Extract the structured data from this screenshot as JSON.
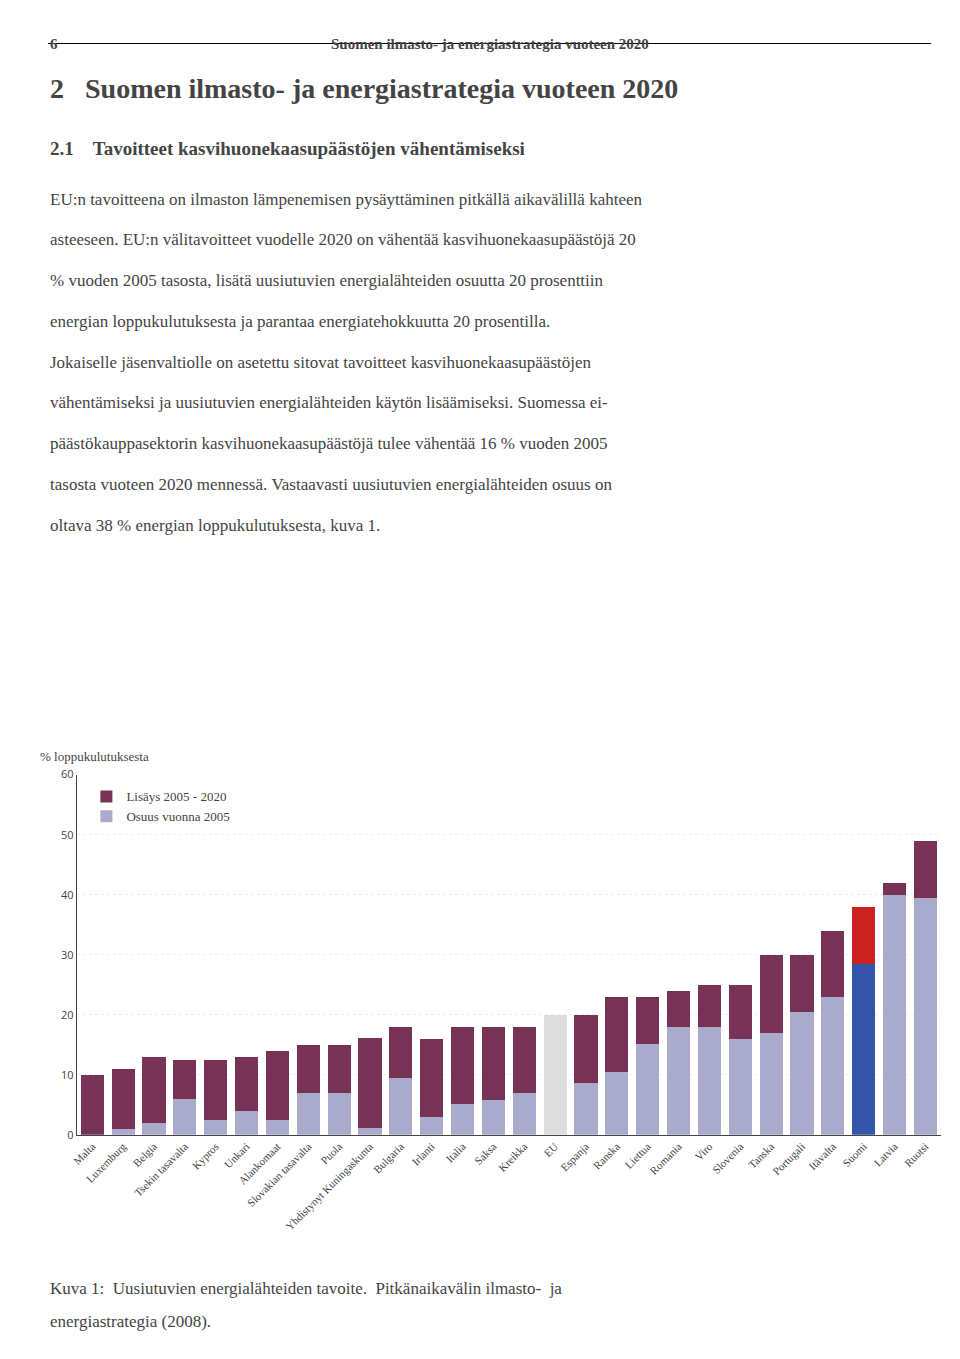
{
  "chart_data": {
    "type": "bar",
    "stacked": true,
    "annotations": [
      "6",
      "Suomen ilmasto- ja energiastrategia vuoteen 2020",
      "2   Suomen ilmasto- ja energiastrategia vuoteen 2020",
      "2.1    Tavoitteet kasvihuonekaasupäästöjen vähentämiseksi",
      "EU:n tavoitteena on ilmaston lämpenemisen pysäyttäminen pitkällä aikavälillä kahteen",
      "asteeseen. EU:n välitavoitteet vuodelle 2020 on vähentää kasvihuonekaasupäästöjä 20",
      "% vuoden 2005 tasosta, lisätä uusiutuvien energialähteiden osuutta 20 prosenttiin",
      "energian loppukulutuksesta ja parantaa energiatehokkuutta 20 prosentilla.",
      "Jokaiselle jäsenvaltiolle on asetettu sitovat tavoitteet kasvihuonekaasupäästöjen",
      "vähentämiseksi ja uusiutuvien energialähteiden käytön lisäämiseksi. Suomessa ei-",
      "päästökauppasektorin kasvihuonekaasupäästöjä tulee vähentää 16 % vuoden 2005",
      "tasosta vuoteen 2020 mennessä. Vastaavasti uusiutuvien energialähteiden osuus on",
      "oltava 38 % energian loppukulutuksesta, kuva 1.",
      "Kuva 1:  Uusiutuvien energialähteiden tavoite.  Pitkänaikavälin ilmasto-  ja",
      "energiastrategia (2008)."
    ],
    "ylabel": "% loppukulutuksesta",
    "categories": [
      "Malta",
      "Luxemburg",
      "Belgia",
      "Tsekin tasavalta",
      "Kypros",
      "Unkari",
      "Alankomaat",
      "Slovakian tasavalta",
      "Puola",
      "Yhdistynyt Kuningaskunta",
      "Bulgaria",
      "Irlanti",
      "Italia",
      "Saksa",
      "Kreikka",
      "EU",
      "Espanja",
      "Ranska",
      "Liettua",
      "Romania",
      "Viro",
      "Slovenia",
      "Tanska",
      "Portugali",
      "Itävalta",
      "Suomi",
      "Latvia",
      "Ruotsi"
    ],
    "series": [
      {
        "name": "Osuus vuonna 2005",
        "colors": [
          "#AAAACC",
          "#AAAACC",
          "#AAAACC",
          "#AAAACC",
          "#AAAACC",
          "#AAAACC",
          "#AAAACC",
          "#AAAACC",
          "#AAAACC",
          "#AAAACC",
          "#AAAACC",
          "#AAAACC",
          "#AAAACC",
          "#AAAACC",
          "#AAAACC",
          "#EEEEEE",
          "#AAAACC",
          "#AAAACC",
          "#AAAACC",
          "#AAAACC",
          "#AAAACC",
          "#AAAACC",
          "#AAAACC",
          "#AAAACC",
          "#AAAACC",
          "#3355AA",
          "#AAAACC",
          "#AAAACC"
        ],
        "values": [
          0.0,
          1.0,
          2.0,
          6.0,
          2.5,
          4.0,
          2.5,
          7.0,
          7.0,
          1.2,
          9.5,
          3.0,
          5.2,
          5.8,
          7.0,
          0.0,
          8.7,
          10.4,
          15.2,
          18.0,
          18.0,
          16.0,
          17.0,
          20.5,
          23.0,
          28.5,
          40.0,
          39.5
        ]
      },
      {
        "name": "Lisäys 2005 - 2020",
        "colors": [
          "#773355",
          "#773355",
          "#773355",
          "#773355",
          "#773355",
          "#773355",
          "#773355",
          "#773355",
          "#773355",
          "#773355",
          "#773355",
          "#773355",
          "#773355",
          "#773355",
          "#773355",
          "#DDDDDD",
          "#773355",
          "#773355",
          "#773355",
          "#773355",
          "#773355",
          "#773355",
          "#773355",
          "#773355",
          "#773355",
          "#CC2222",
          "#773355",
          "#773355"
        ],
        "values": [
          10.0,
          10.0,
          11.0,
          6.5,
          10.0,
          9.0,
          11.5,
          8.0,
          8.0,
          15.0,
          8.5,
          13.0,
          12.8,
          12.2,
          11.0,
          20.0,
          11.3,
          12.6,
          7.8,
          6.0,
          7.0,
          9.0,
          13.0,
          9.5,
          11.0,
          9.5,
          2.0,
          9.5
        ]
      }
    ],
    "ylim": [
      0,
      60
    ],
    "yticks": [
      0,
      10,
      20,
      30,
      40,
      50,
      60
    ],
    "grid": true,
    "legend": "upper left"
  }
}
